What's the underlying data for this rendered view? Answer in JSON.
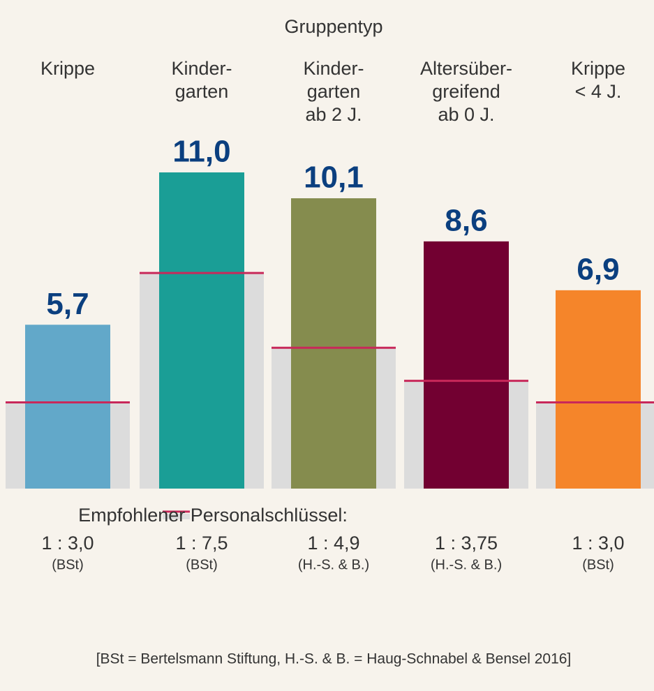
{
  "chart_data": {
    "type": "bar",
    "title": "Gruppentyp",
    "categories": [
      [
        "Krippe"
      ],
      [
        "Kinder-",
        "garten"
      ],
      [
        "Kinder-",
        "garten",
        "ab 2 J."
      ],
      [
        "Altersüber-",
        "greifend",
        "ab 0 J."
      ],
      [
        "Krippe",
        "< 4 J."
      ]
    ],
    "values": [
      5.7,
      11.0,
      10.1,
      8.6,
      6.9
    ],
    "value_labels": [
      "5,7",
      "11,0",
      "10,1",
      "8,6",
      "6,9"
    ],
    "colors": [
      "#62a8c9",
      "#1a9e96",
      "#858c4e",
      "#720031",
      "#f5852a"
    ],
    "recommended": {
      "name": "Empfohlener Personalschlüssel:",
      "color": "#c8285a",
      "values": [
        3.0,
        7.5,
        4.9,
        3.75,
        3.0
      ],
      "value_labels": [
        "1 : 3,0",
        "1 : 7,5",
        "1 : 4,9",
        "1 : 3,75",
        "1 : 3,0"
      ],
      "sources": [
        "(BSt)",
        "(BSt)",
        "(H.-S. & B.)",
        "(H.-S. & B.)",
        "(BSt)"
      ]
    },
    "ylim": [
      0,
      11
    ],
    "footnote": "[BSt = Bertelsmann Stiftung, H.-S. & B. = Haug-Schnabel & Bensel 2016]"
  }
}
